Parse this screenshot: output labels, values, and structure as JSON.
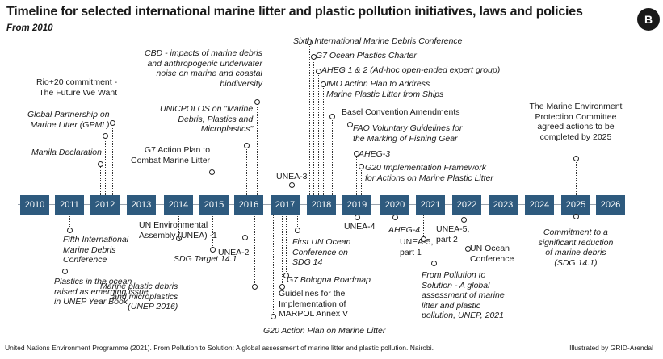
{
  "header": {
    "title": "Timeline for selected international marine litter and plastic pollution initiatives, laws and policies",
    "subtitle": "From 2010",
    "panel_label": "B"
  },
  "years": [
    "2010",
    "2011",
    "2012",
    "2013",
    "2014",
    "2015",
    "2016",
    "2017",
    "2018",
    "2019",
    "2020",
    "2021",
    "2022",
    "2023",
    "2024",
    "2025",
    "2026"
  ],
  "events_above": [
    {
      "id": "rio20",
      "lines": [
        "Rio+20 commitment -",
        "The Future We Want"
      ]
    },
    {
      "id": "gpml",
      "lines": [
        "Global Partnership on",
        "Marine Litter (GPML)"
      ]
    },
    {
      "id": "manila",
      "lines": [
        "Manila Declaration"
      ]
    },
    {
      "id": "g7plan",
      "lines": [
        "G7 Action Plan to",
        "Combat Marine Litter"
      ]
    },
    {
      "id": "cbd",
      "lines": [
        "CBD - impacts of marine debris",
        "and anthropogenic underwater",
        "noise on marine and coastal",
        "biodiversity"
      ]
    },
    {
      "id": "unicpolos",
      "lines": [
        "UNICPOLOS on \"Marine",
        "Debris, Plastics and",
        "Microplastics\""
      ]
    },
    {
      "id": "unea3",
      "lines": [
        "UNEA-3"
      ]
    },
    {
      "id": "sixth",
      "lines": [
        "Sixth International Marine Debris Conference"
      ]
    },
    {
      "id": "g7charter",
      "lines": [
        "G7 Ocean Plastics Charter"
      ]
    },
    {
      "id": "aheg12",
      "lines": [
        "AHEG 1 & 2 (Ad-hoc open-ended expert group)"
      ]
    },
    {
      "id": "imo",
      "lines": [
        "IMO Action Plan to Address",
        "Marine Plastic Litter from Ships"
      ]
    },
    {
      "id": "basel",
      "lines": [
        "Basel Convention Amendments"
      ]
    },
    {
      "id": "fao",
      "lines": [
        "FAO Voluntary Guidelines for",
        "the Marking of Fishing Gear"
      ]
    },
    {
      "id": "aheg3",
      "lines": [
        "AHEG-3"
      ]
    },
    {
      "id": "g20impl",
      "lines": [
        "G20 Implementation Framework",
        "for Actions on Marine Plastic Litter"
      ]
    },
    {
      "id": "mepc",
      "lines": [
        "The Marine Environment",
        "Protection Committee",
        "agreed actions to be",
        "completed by 2025"
      ]
    }
  ],
  "events_below": [
    {
      "id": "fifth",
      "lines": [
        "Fifth International",
        "Marine Debris",
        "Conference"
      ]
    },
    {
      "id": "plastics_ocean",
      "lines": [
        "Plastics in the ocean",
        "raised as emerging issue",
        "in UNEP Year Book"
      ]
    },
    {
      "id": "unea1",
      "lines": [
        "UN Environmental",
        "Assembly (UNEA) -1"
      ]
    },
    {
      "id": "sdg141",
      "lines": [
        "SDG Target 14.1"
      ]
    },
    {
      "id": "unea2",
      "lines": [
        "UNEA-2"
      ]
    },
    {
      "id": "unep2016",
      "lines": [
        "Marine plastic debris",
        "and microplastics",
        "(UNEP 2016)"
      ]
    },
    {
      "id": "firstocean",
      "lines": [
        "First UN Ocean",
        "Conference on",
        "SDG 14"
      ]
    },
    {
      "id": "g7bologna",
      "lines": [
        "G7 Bologna Roadmap"
      ]
    },
    {
      "id": "marpol",
      "lines": [
        "Guidelines for the",
        "Implementation of",
        "MARPOL Annex V"
      ]
    },
    {
      "id": "g20plan",
      "lines": [
        "G20 Action Plan on Marine Litter"
      ]
    },
    {
      "id": "unea4",
      "lines": [
        "UNEA-4"
      ]
    },
    {
      "id": "aheg4",
      "lines": [
        "AHEG-4"
      ]
    },
    {
      "id": "unea5p1",
      "lines": [
        "UNEA-5,",
        "part 1"
      ]
    },
    {
      "id": "unea5p2",
      "lines": [
        "UNEA-5,",
        "part 2"
      ]
    },
    {
      "id": "unoc",
      "lines": [
        "UN Ocean",
        "Conference"
      ]
    },
    {
      "id": "p2s",
      "lines": [
        "From Pollution to",
        "Solution - A global",
        "assessment of marine",
        "litter and plastic",
        "pollution, UNEP, 2021"
      ]
    },
    {
      "id": "commit",
      "lines": [
        "Commitment to a",
        "significant reduction",
        "of marine debris",
        "(SDG 14.1)"
      ]
    }
  ],
  "footer": {
    "source": "United Nations Environment Programme (2021). From Pollution to Solution: A global assessment of marine litter and plastic pollution. Nairobi.",
    "credit": "Illustrated by GRID-Arendal"
  }
}
